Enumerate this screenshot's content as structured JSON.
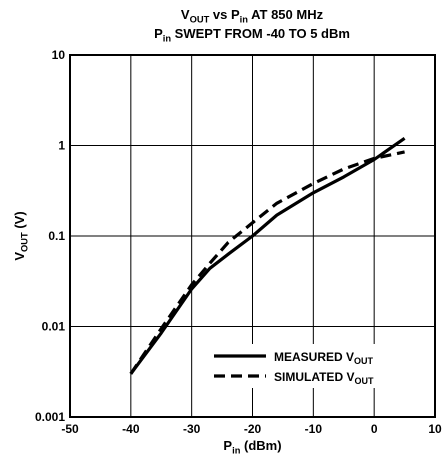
{
  "chart_data": {
    "type": "line",
    "title_lines": [
      {
        "pre": "V",
        "sub": "OUT",
        "post": " vs P",
        "sub2": "in",
        "post2": " AT 850 MHz"
      },
      {
        "pre": "P",
        "sub": "in",
        "post": " SWEPT FROM -40 TO 5 dBm",
        "sub2": "",
        "post2": ""
      }
    ],
    "xlabel": {
      "pre": "P",
      "sub": "in",
      "post": " (dBm)"
    },
    "ylabel": {
      "pre": "V",
      "sub": "OUT",
      "post": " (V)"
    },
    "xlim": [
      -50,
      10
    ],
    "ylim": [
      0.001,
      10
    ],
    "y_scale": "log",
    "grid": true,
    "x_ticks": [
      -50,
      -40,
      -30,
      -20,
      -10,
      0,
      10
    ],
    "x_tick_labels": [
      "-50",
      "-40",
      "-30",
      "-20",
      "-10",
      "0",
      "10"
    ],
    "y_ticks": [
      0.001,
      0.01,
      0.1,
      1,
      10
    ],
    "y_tick_labels": [
      "0.001",
      "0.01",
      "0.1",
      "1",
      "10"
    ],
    "legend_position": "bottom-right",
    "series": [
      {
        "name": "MEASURED V",
        "name_sub": "OUT",
        "style": "solid",
        "color": "#000000",
        "x": [
          -40,
          -35,
          -30,
          -27,
          -24,
          -20,
          -16,
          -10,
          -5,
          0,
          5
        ],
        "y": [
          0.003,
          0.0085,
          0.026,
          0.044,
          0.063,
          0.1,
          0.17,
          0.3,
          0.45,
          0.7,
          1.2
        ]
      },
      {
        "name": "SIMULATED V",
        "name_sub": "OUT",
        "style": "dashed",
        "color": "#000000",
        "x": [
          -40,
          -35,
          -30,
          -27,
          -24,
          -20,
          -16,
          -10,
          -5,
          0,
          5
        ],
        "y": [
          0.003,
          0.0095,
          0.029,
          0.05,
          0.085,
          0.14,
          0.23,
          0.38,
          0.55,
          0.72,
          0.85
        ]
      }
    ]
  }
}
